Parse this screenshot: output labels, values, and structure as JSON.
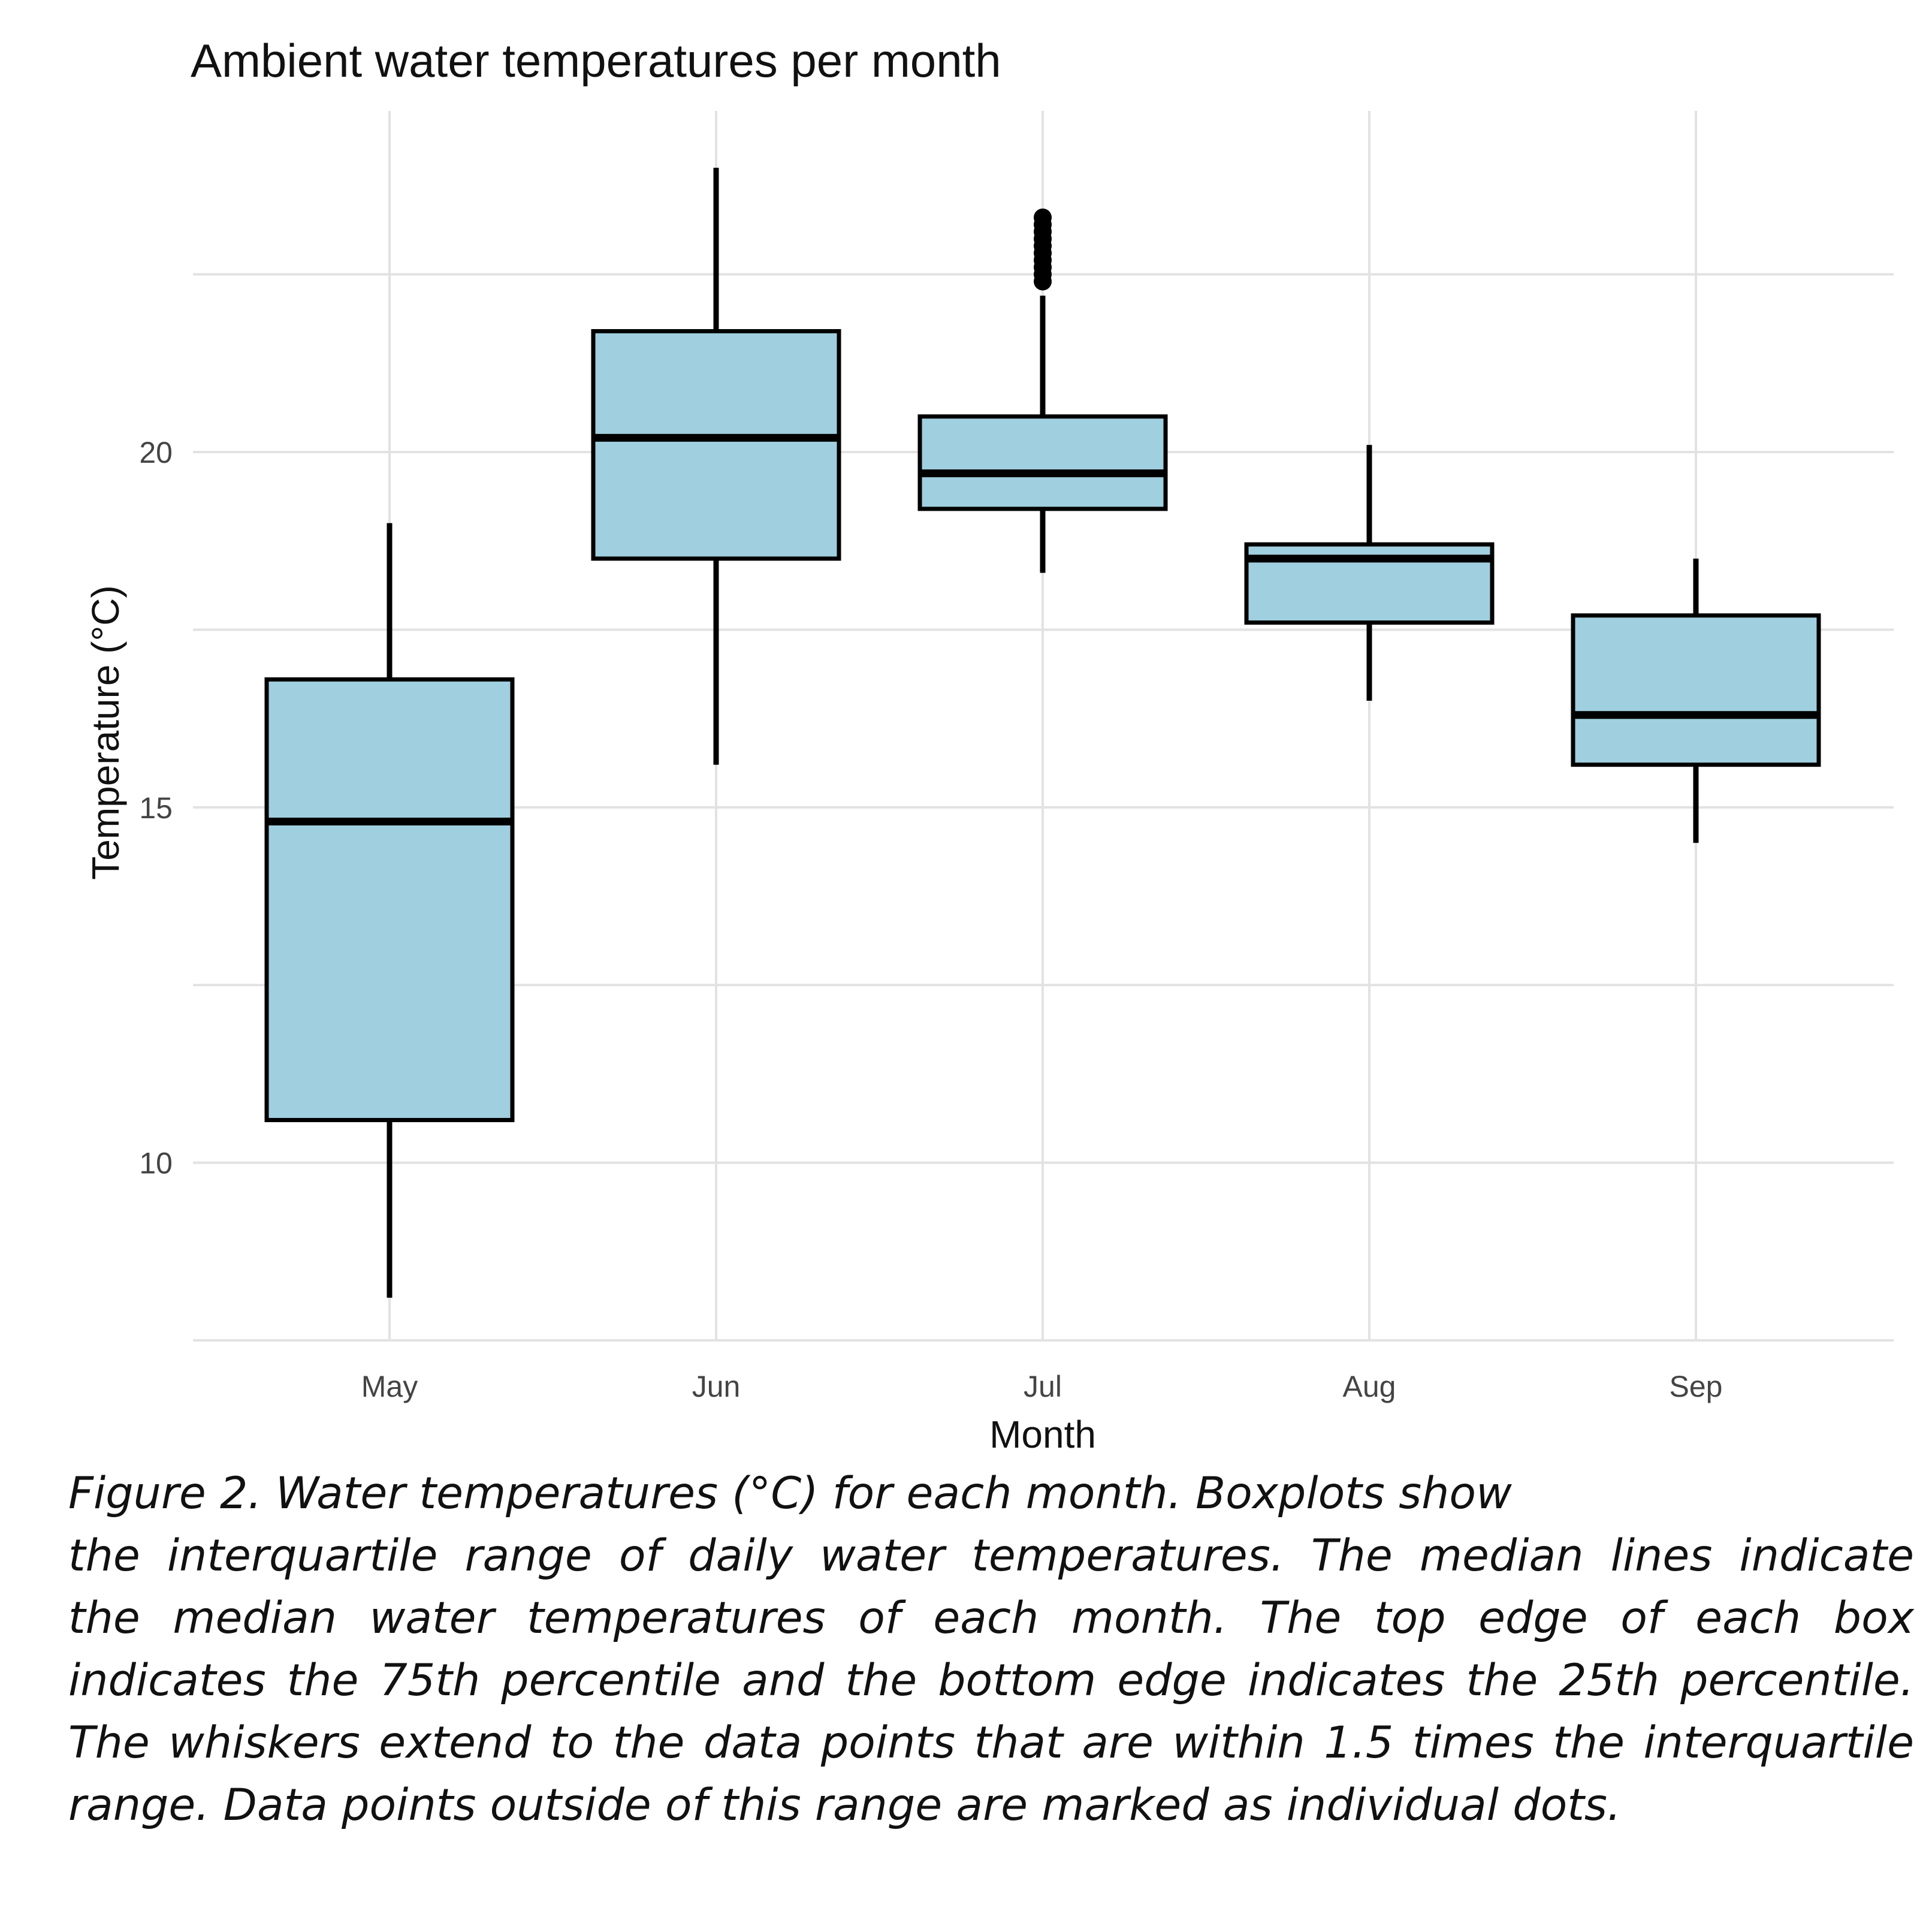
{
  "chart_data": {
    "type": "boxplot",
    "title": "Ambient water temperatures per month",
    "xlabel": "Month",
    "ylabel": "Temperature (°C)",
    "categories": [
      "May",
      "Jun",
      "Jul",
      "Aug",
      "Sep"
    ],
    "y_ticks": [
      10,
      15,
      20
    ],
    "ylim": [
      7.5,
      24.8
    ],
    "grid": true,
    "fill_color": "#a0cfdf",
    "stroke_color": "#000000",
    "boxes": [
      {
        "category": "May",
        "whisker_low": 8.1,
        "q1": 10.6,
        "median": 14.8,
        "q3": 16.8,
        "whisker_high": 19.0,
        "outliers": []
      },
      {
        "category": "Jun",
        "whisker_low": 15.6,
        "q1": 18.5,
        "median": 20.2,
        "q3": 21.7,
        "whisker_high": 24.0,
        "outliers": []
      },
      {
        "category": "Jul",
        "whisker_low": 18.3,
        "q1": 19.2,
        "median": 19.7,
        "q3": 20.5,
        "whisker_high": 22.2,
        "outliers": [
          22.4,
          22.5,
          22.6,
          22.7,
          22.8,
          22.9,
          23.0,
          23.1,
          23.2,
          23.3
        ]
      },
      {
        "category": "Aug",
        "whisker_low": 16.5,
        "q1": 17.6,
        "median": 18.5,
        "q3": 18.7,
        "whisker_high": 20.1,
        "outliers": []
      },
      {
        "category": "Sep",
        "whisker_low": 14.5,
        "q1": 15.6,
        "median": 16.3,
        "q3": 17.7,
        "whisker_high": 18.5,
        "outliers": []
      }
    ]
  },
  "caption": {
    "line1": "Figure 2. Water temperatures (°C) for each month. Boxplots show",
    "line2": "the interquartile range of daily water temperatures. The median lines indicate",
    "line3": "the median water temperatures of each month. The top edge of each box",
    "line4": "indicates the 75th percentile and the bottom edge indicates the 25th percentile.",
    "line5": "The whiskers extend to the data points that are within 1.5 times the interquartile",
    "line6": "range. Data points outside of this range are marked as individual dots."
  }
}
